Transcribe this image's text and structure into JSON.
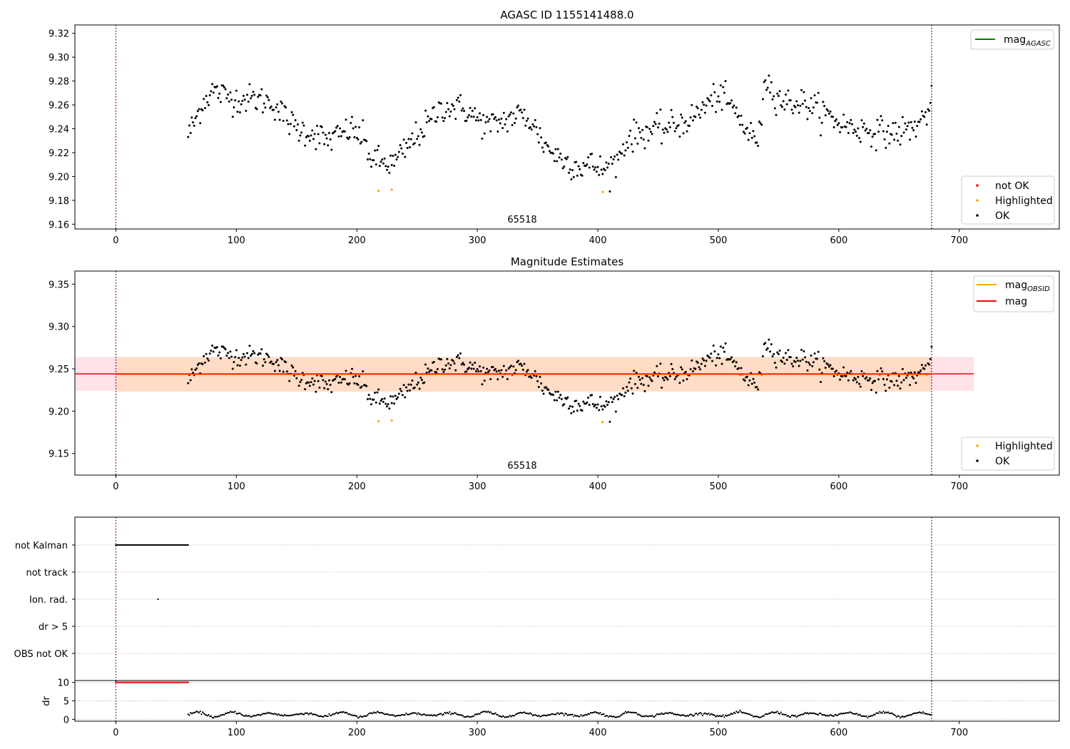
{
  "figure": {
    "top_title": "AGASC ID 1155141488.0",
    "mid_title": "Magnitude Estimates",
    "obsid_label": "65518"
  },
  "colors": {
    "ok": "#000000",
    "highlighted": "#ffa500",
    "not_ok": "#ff0000",
    "mag_line": "#ff0000",
    "mag_obsid_line": "#ffa500",
    "agasc_line": "#008000",
    "band_mag": "#ffc0cb",
    "band_obsid": "#ffdab9",
    "vline": "#800080",
    "grid": "#b0b0b0"
  },
  "chart_data": [
    {
      "type": "scatter",
      "title": "AGASC ID 1155141488.0",
      "annotation": "65518",
      "xlim": [
        -34,
        783
      ],
      "ylim": [
        9.156,
        9.327
      ],
      "xticks": [
        0,
        100,
        200,
        300,
        400,
        500,
        600,
        700
      ],
      "yticks": [
        9.16,
        9.18,
        9.2,
        9.22,
        9.24,
        9.26,
        9.28,
        9.3,
        9.32
      ],
      "vlines": [
        0,
        677
      ],
      "legend_lines": [
        {
          "name": "mag_AGASC",
          "label": "mag",
          "sub": "AGASC",
          "color": "#008000"
        }
      ],
      "legend_points": [
        {
          "name": "not OK",
          "color": "#ff0000"
        },
        {
          "name": "Highlighted",
          "color": "#ffa500"
        },
        {
          "name": "OK",
          "color": "#000000"
        }
      ],
      "ok_trend": [
        [
          60,
          9.235
        ],
        [
          65,
          9.245
        ],
        [
          72,
          9.262
        ],
        [
          80,
          9.272
        ],
        [
          90,
          9.268
        ],
        [
          100,
          9.265
        ],
        [
          115,
          9.265
        ],
        [
          130,
          9.262
        ],
        [
          140,
          9.25
        ],
        [
          150,
          9.24
        ],
        [
          165,
          9.236
        ],
        [
          175,
          9.23
        ],
        [
          185,
          9.234
        ],
        [
          195,
          9.24
        ],
        [
          205,
          9.232
        ],
        [
          212,
          9.215
        ],
        [
          220,
          9.212
        ],
        [
          230,
          9.21
        ],
        [
          240,
          9.222
        ],
        [
          250,
          9.235
        ],
        [
          260,
          9.245
        ],
        [
          270,
          9.258
        ],
        [
          280,
          9.258
        ],
        [
          290,
          9.256
        ],
        [
          300,
          9.248
        ],
        [
          310,
          9.242
        ],
        [
          320,
          9.246
        ],
        [
          335,
          9.252
        ],
        [
          345,
          9.246
        ],
        [
          355,
          9.228
        ],
        [
          365,
          9.218
        ],
        [
          375,
          9.212
        ],
        [
          385,
          9.208
        ],
        [
          395,
          9.21
        ],
        [
          405,
          9.205
        ],
        [
          415,
          9.212
        ],
        [
          425,
          9.232
        ],
        [
          440,
          9.238
        ],
        [
          455,
          9.24
        ],
        [
          470,
          9.245
        ],
        [
          480,
          9.25
        ],
        [
          490,
          9.26
        ],
        [
          500,
          9.268
        ],
        [
          510,
          9.26
        ],
        [
          518,
          9.248
        ],
        [
          525,
          9.236
        ],
        [
          530,
          9.232
        ],
        [
          535,
          9.234
        ],
        [
          538,
          9.285
        ],
        [
          545,
          9.272
        ],
        [
          555,
          9.262
        ],
        [
          570,
          9.262
        ],
        [
          585,
          9.255
        ],
        [
          600,
          9.245
        ],
        [
          615,
          9.24
        ],
        [
          630,
          9.238
        ],
        [
          645,
          9.236
        ],
        [
          660,
          9.24
        ],
        [
          670,
          9.248
        ],
        [
          677,
          9.262
        ]
      ],
      "ok_sigma": 0.011,
      "ok_step": 1,
      "highlighted": [
        [
          218,
          9.188
        ],
        [
          229,
          9.189
        ],
        [
          404,
          9.187
        ]
      ],
      "not_ok": []
    },
    {
      "type": "scatter",
      "title": "Magnitude Estimates",
      "annotation": "65518",
      "xlim": [
        -34,
        783
      ],
      "ylim": [
        9.1245,
        9.3655
      ],
      "xticks": [
        0,
        100,
        200,
        300,
        400,
        500,
        600,
        700
      ],
      "yticks": [
        9.15,
        9.2,
        9.25,
        9.3,
        9.35
      ],
      "vlines": [
        0,
        677
      ],
      "mag": 9.244,
      "mag_band": [
        9.224,
        9.264
      ],
      "mag_obsid": 9.2435,
      "mag_obsid_band": [
        9.223,
        9.264
      ],
      "band_xrange": [
        -34,
        712
      ],
      "legend_lines": [
        {
          "name": "mag_OBSID",
          "label": "mag",
          "sub": "OBSID",
          "color": "#ffa500"
        },
        {
          "name": "mag",
          "label": "mag",
          "sub": "",
          "color": "#ff0000"
        }
      ],
      "legend_points": [
        {
          "name": "Highlighted",
          "color": "#ffa500"
        },
        {
          "name": "OK",
          "color": "#000000"
        }
      ],
      "highlighted": [
        [
          218,
          9.188
        ],
        [
          229,
          9.189
        ],
        [
          404,
          9.187
        ]
      ]
    },
    {
      "type": "scatter",
      "title": "",
      "xlim": [
        -34,
        783
      ],
      "categories": [
        "not Kalman",
        "not track",
        "Ion. rad.",
        "dr > 5",
        "OBS not OK"
      ],
      "vlines": [
        0,
        677
      ],
      "flags": [
        {
          "category": "not Kalman",
          "x_range": [
            0,
            60
          ],
          "step": 1
        },
        {
          "category": "Ion. rad.",
          "x": [
            35
          ]
        }
      ]
    },
    {
      "type": "scatter",
      "title": "",
      "xlim": [
        -34,
        783
      ],
      "ylim": [
        -0.5,
        10.5
      ],
      "ylabel": "dr",
      "yticks": [
        0,
        5,
        10
      ],
      "xticks": [
        0,
        100,
        200,
        300,
        400,
        500,
        600,
        700
      ],
      "vlines": [
        0,
        677
      ],
      "capped_points": {
        "x_range": [
          0,
          60
        ],
        "value": 10,
        "color": "#ff0000"
      },
      "dr_range": [
        60,
        677
      ],
      "dr_mean": 1.3,
      "dr_amp": 0.7
    }
  ]
}
